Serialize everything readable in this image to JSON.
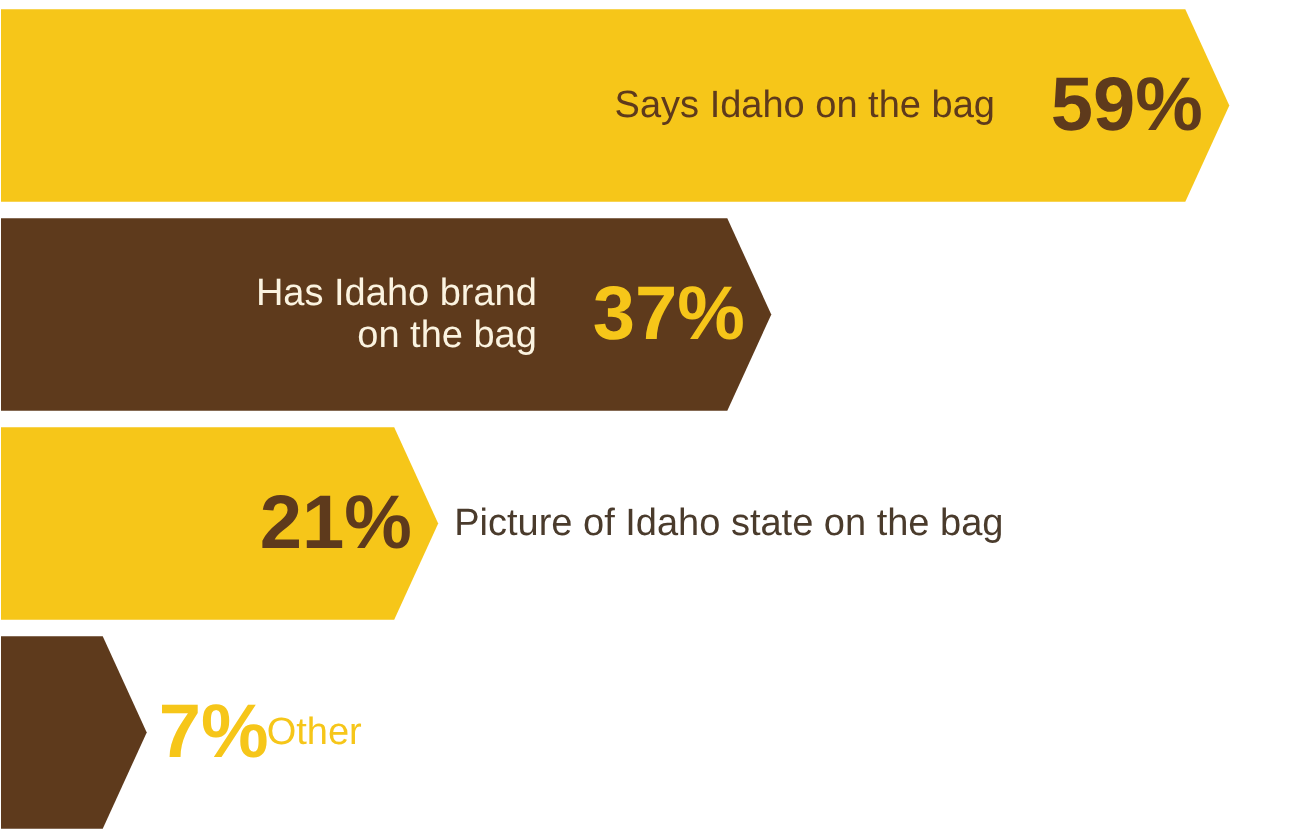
{
  "chart_data": {
    "type": "bar",
    "orientation": "horizontal",
    "categories": [
      "Says Idaho on the bag",
      "Has Idaho brand\non the bag",
      "Picture of Idaho state on the bag",
      "Other"
    ],
    "values": [
      59,
      37,
      21,
      7
    ],
    "colors": [
      "#f6c619",
      "#5e3a1c",
      "#f6c619",
      "#5e3a1c"
    ],
    "value_labels": [
      "59%",
      "37%",
      "21%",
      "7%"
    ],
    "tick_labels": false,
    "grid": false
  }
}
